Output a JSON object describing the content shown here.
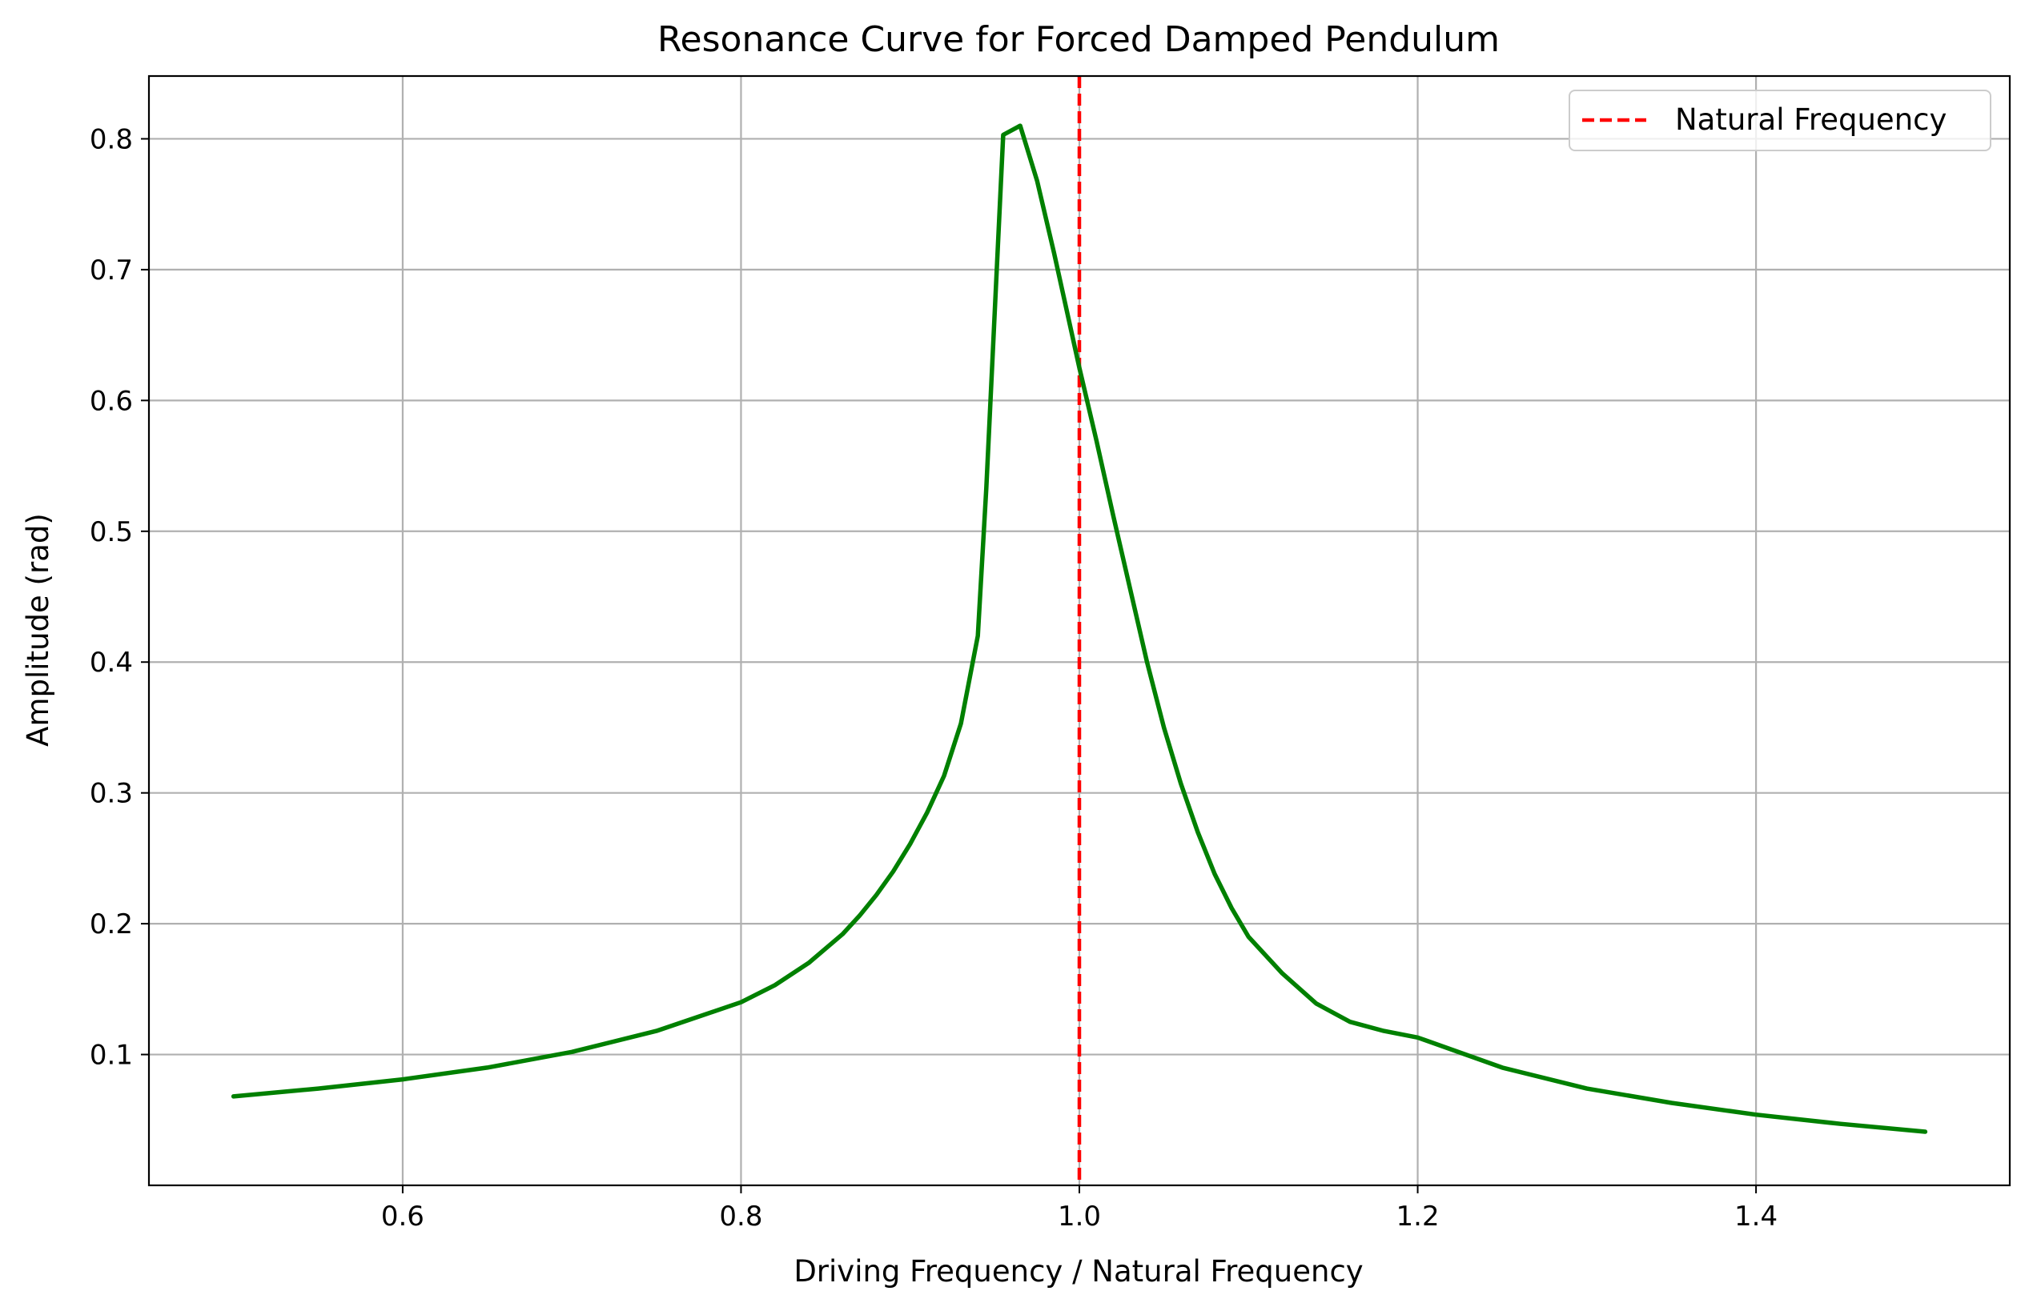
{
  "chart_data": {
    "type": "line",
    "title": "Resonance Curve for Forced Damped Pendulum",
    "xlabel": "Driving Frequency / Natural Frequency",
    "ylabel": "Amplitude (rad)",
    "xlim": [
      0.45,
      1.55
    ],
    "ylim": [
      0.0,
      0.848
    ],
    "xticks": [
      0.6,
      0.8,
      1.0,
      1.2,
      1.4
    ],
    "xtick_labels": [
      "0.6",
      "0.8",
      "1.0",
      "1.2",
      "1.4"
    ],
    "yticks": [
      0.1,
      0.2,
      0.3,
      0.4,
      0.5,
      0.6,
      0.7,
      0.8
    ],
    "ytick_labels": [
      "0.1",
      "0.2",
      "0.3",
      "0.4",
      "0.5",
      "0.6",
      "0.7",
      "0.8"
    ],
    "grid": true,
    "legend_position": "top-right",
    "series": [
      {
        "color": "#008000",
        "style": "solid",
        "x": [
          0.5,
          0.55,
          0.6,
          0.65,
          0.7,
          0.75,
          0.8,
          0.82,
          0.84,
          0.86,
          0.87,
          0.88,
          0.89,
          0.9,
          0.91,
          0.92,
          0.93,
          0.94,
          0.945,
          0.955,
          0.965,
          0.975,
          0.985,
          1.0,
          1.01,
          1.02,
          1.03,
          1.04,
          1.05,
          1.06,
          1.07,
          1.08,
          1.09,
          1.1,
          1.12,
          1.14,
          1.16,
          1.18,
          1.2,
          1.25,
          1.3,
          1.35,
          1.4,
          1.45,
          1.5
        ],
        "y": [
          0.068,
          0.074,
          0.081,
          0.09,
          0.102,
          0.118,
          0.14,
          0.153,
          0.17,
          0.192,
          0.206,
          0.222,
          0.24,
          0.261,
          0.285,
          0.313,
          0.353,
          0.42,
          0.533,
          0.803,
          0.81,
          0.768,
          0.713,
          0.625,
          0.57,
          0.512,
          0.456,
          0.4,
          0.35,
          0.307,
          0.27,
          0.238,
          0.212,
          0.19,
          0.162,
          0.139,
          0.125,
          0.118,
          0.113,
          0.09,
          0.074,
          0.063,
          0.054,
          0.047,
          0.041
        ]
      }
    ],
    "reference_lines": [
      {
        "name": "Natural Frequency",
        "orientation": "vertical",
        "x": 1.0,
        "color": "#ff0000",
        "style": "dashed"
      }
    ]
  }
}
